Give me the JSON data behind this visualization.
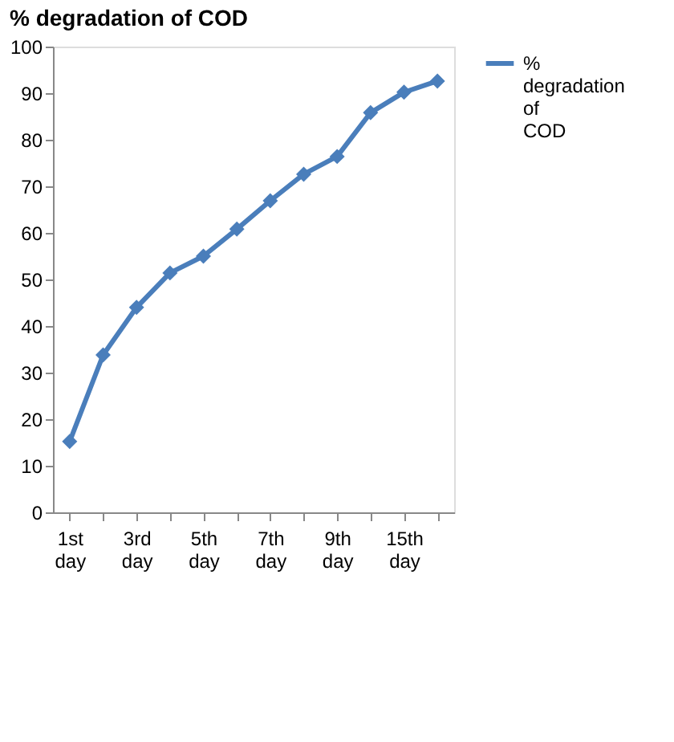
{
  "chart_data": {
    "type": "line",
    "title": "% degradation of COD",
    "categories": [
      "1st day",
      null,
      "3rd day",
      null,
      "5th day",
      null,
      "7th day",
      null,
      "9th day",
      null,
      "15th day",
      null
    ],
    "series": [
      {
        "name": "% degradation of COD",
        "color": "#4a7ebb",
        "values": [
          15.2,
          33.8,
          44,
          51.4,
          55,
          60.8,
          66.9,
          72.6,
          76.4,
          85.8,
          90.2,
          92.6
        ]
      }
    ],
    "ylim": [
      0,
      100
    ],
    "yticks": [
      0,
      10,
      20,
      30,
      40,
      50,
      60,
      70,
      80,
      90,
      100
    ],
    "grid": false,
    "legend": "right",
    "marker": "diamond",
    "line_style": "solid"
  }
}
